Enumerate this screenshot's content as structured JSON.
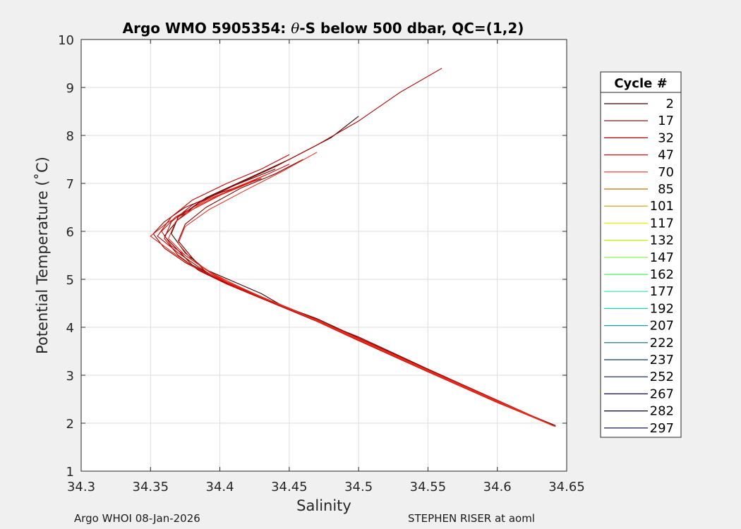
{
  "chart_data": {
    "type": "line",
    "title": {
      "prefix": "Argo WMO 5905354: ",
      "theta": "θ",
      "suffix": "-S below 500 dbar,  QC=(1,2)"
    },
    "xlabel": "Salinity",
    "ylabel": "Potential Temperature (˚C)",
    "xlim": [
      34.3,
      34.65
    ],
    "ylim": [
      1,
      10
    ],
    "xticks": [
      34.3,
      34.35,
      34.4,
      34.45,
      34.5,
      34.55,
      34.6,
      34.65
    ],
    "xtick_labels": [
      "34.3",
      "34.35",
      "34.4",
      "34.45",
      "34.5",
      "34.55",
      "34.6",
      "34.65"
    ],
    "yticks": [
      1,
      2,
      3,
      4,
      5,
      6,
      7,
      8,
      9,
      10
    ],
    "ytick_labels": [
      "1",
      "2",
      "3",
      "4",
      "5",
      "6",
      "7",
      "8",
      "9",
      "10"
    ],
    "grid": true,
    "legend": {
      "title": "Cycle #",
      "placement": "right-outside",
      "entries": [
        {
          "label": "2",
          "color": "#3a0000"
        },
        {
          "label": "17",
          "color": "#7a0000"
        },
        {
          "label": "32",
          "color": "#b00000"
        },
        {
          "label": "47",
          "color": "#d81010"
        },
        {
          "label": "70",
          "color": "#e83020"
        },
        {
          "label": "85",
          "color": "#c07000"
        },
        {
          "label": "101",
          "color": "#d0a000"
        },
        {
          "label": "117",
          "color": "#f0f000"
        },
        {
          "label": "132",
          "color": "#c0f000"
        },
        {
          "label": "147",
          "color": "#80f040"
        },
        {
          "label": "162",
          "color": "#40f060"
        },
        {
          "label": "177",
          "color": "#30e0a0"
        },
        {
          "label": "192",
          "color": "#20d0c0"
        },
        {
          "label": "207",
          "color": "#10a0b0"
        },
        {
          "label": "222",
          "color": "#0a6a80"
        },
        {
          "label": "237",
          "color": "#0a3a60"
        },
        {
          "label": "252",
          "color": "#0a1a50"
        },
        {
          "label": "267",
          "color": "#0a0a60"
        },
        {
          "label": "282",
          "color": "#00002a"
        },
        {
          "label": "297",
          "color": "#000040"
        }
      ]
    },
    "series": [
      {
        "color": "#3a0000",
        "x": [
          34.642,
          34.6,
          34.55,
          34.5,
          34.47,
          34.445,
          34.43,
          34.41,
          34.39,
          34.375,
          34.365,
          34.37,
          34.39,
          34.42,
          34.45,
          34.48,
          34.5
        ],
        "y": [
          1.95,
          2.45,
          3.1,
          3.75,
          4.15,
          4.45,
          4.7,
          4.95,
          5.2,
          5.55,
          5.95,
          6.3,
          6.7,
          7.1,
          7.5,
          7.95,
          8.4
        ]
      },
      {
        "color": "#5a0000",
        "x": [
          34.64,
          34.6,
          34.55,
          34.5,
          34.47,
          34.44,
          34.42,
          34.4,
          34.38,
          34.37,
          34.36,
          34.37,
          34.385,
          34.41,
          34.44
        ],
        "y": [
          1.95,
          2.47,
          3.12,
          3.78,
          4.18,
          4.5,
          4.75,
          5.0,
          5.3,
          5.6,
          5.9,
          6.25,
          6.6,
          6.95,
          7.3
        ]
      },
      {
        "color": "#7a0000",
        "x": [
          34.641,
          34.6,
          34.55,
          34.5,
          34.47,
          34.445,
          34.425,
          34.405,
          34.39,
          34.38,
          34.37,
          34.375,
          34.39,
          34.415,
          34.44,
          34.46
        ],
        "y": [
          1.94,
          2.44,
          3.08,
          3.74,
          4.14,
          4.44,
          4.68,
          4.92,
          5.15,
          5.45,
          5.8,
          6.15,
          6.5,
          6.9,
          7.2,
          7.5
        ]
      },
      {
        "color": "#900000",
        "x": [
          34.64,
          34.6,
          34.55,
          34.5,
          34.465,
          34.44,
          34.415,
          34.395,
          34.375,
          34.36,
          34.352,
          34.36,
          34.375,
          34.4,
          34.43
        ],
        "y": [
          1.96,
          2.48,
          3.13,
          3.8,
          4.2,
          4.52,
          4.78,
          5.05,
          5.35,
          5.65,
          5.95,
          6.2,
          6.5,
          6.8,
          7.1
        ]
      },
      {
        "color": "#b00000",
        "x": [
          34.642,
          34.6,
          34.55,
          34.5,
          34.47,
          34.445,
          34.425,
          34.405,
          34.385,
          34.37,
          34.36,
          34.365,
          34.38,
          34.41,
          34.44,
          34.47,
          34.5,
          34.53,
          34.56
        ],
        "y": [
          1.93,
          2.43,
          3.07,
          3.72,
          4.12,
          4.42,
          4.66,
          4.9,
          5.18,
          5.5,
          5.85,
          6.2,
          6.55,
          6.95,
          7.35,
          7.8,
          8.3,
          8.9,
          9.4
        ]
      },
      {
        "color": "#c00000",
        "x": [
          34.64,
          34.6,
          34.55,
          34.5,
          34.47,
          34.445,
          34.42,
          34.4,
          34.385,
          34.37,
          34.355,
          34.365,
          34.38,
          34.405,
          34.43,
          34.45
        ],
        "y": [
          1.95,
          2.46,
          3.1,
          3.76,
          4.16,
          4.46,
          4.72,
          4.98,
          5.25,
          5.55,
          5.9,
          6.3,
          6.65,
          7.0,
          7.3,
          7.6
        ]
      },
      {
        "color": "#d81010",
        "x": [
          34.641,
          34.6,
          34.55,
          34.5,
          34.47,
          34.45,
          34.43,
          34.41,
          34.395,
          34.38,
          34.365,
          34.358,
          34.368,
          34.39,
          34.42,
          34.45
        ],
        "y": [
          1.94,
          2.45,
          3.09,
          3.73,
          4.13,
          4.4,
          4.62,
          4.85,
          5.1,
          5.4,
          5.7,
          6.0,
          6.3,
          6.65,
          7.0,
          7.4
        ]
      },
      {
        "color": "#e02010",
        "x": [
          34.64,
          34.6,
          34.55,
          34.5,
          34.468,
          34.442,
          34.42,
          34.4,
          34.38,
          34.365,
          34.35,
          34.362,
          34.38,
          34.4,
          34.425
        ],
        "y": [
          1.96,
          2.47,
          3.11,
          3.77,
          4.17,
          4.48,
          4.74,
          5.0,
          5.28,
          5.58,
          5.9,
          6.18,
          6.45,
          6.75,
          7.05
        ]
      },
      {
        "color": "#e83020",
        "x": [
          34.642,
          34.6,
          34.55,
          34.5,
          34.47,
          34.448,
          34.428,
          34.41,
          34.395,
          34.38,
          34.37,
          34.375,
          34.392,
          34.418,
          34.445,
          34.47
        ],
        "y": [
          1.93,
          2.44,
          3.08,
          3.74,
          4.13,
          4.42,
          4.66,
          4.9,
          5.12,
          5.4,
          5.75,
          6.1,
          6.45,
          6.85,
          7.25,
          7.65
        ]
      },
      {
        "color": "#f02a1a",
        "x": [
          34.64,
          34.6,
          34.55,
          34.5,
          34.47,
          34.445,
          34.425,
          34.405,
          34.39,
          34.375,
          34.363,
          34.368,
          34.385,
          34.41,
          34.435
        ],
        "y": [
          1.95,
          2.46,
          3.1,
          3.75,
          4.15,
          4.45,
          4.7,
          4.95,
          5.2,
          5.5,
          5.85,
          6.2,
          6.55,
          6.9,
          7.2
        ]
      }
    ]
  },
  "footer": {
    "left": "Argo WHOI 08-Jan-2026",
    "right": "STEPHEN RISER at aoml"
  }
}
